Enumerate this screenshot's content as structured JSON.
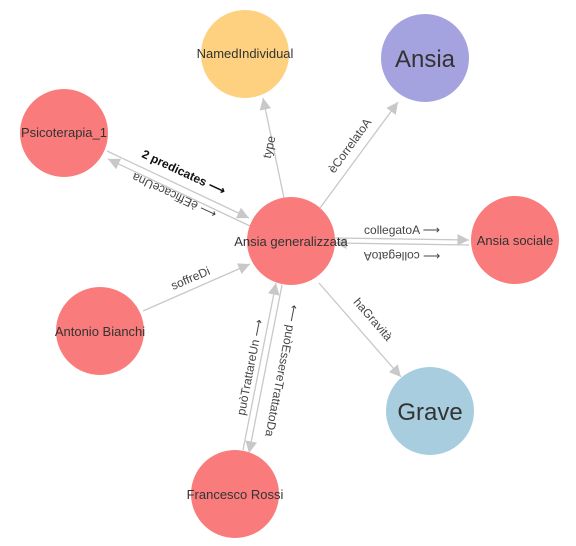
{
  "colors": {
    "concept": "#f97b7b",
    "class": "#fdd17f",
    "ansia": "#a4a3df",
    "severity": "#a7cddf",
    "edge": "#c8c8c8"
  },
  "nodes": {
    "center": {
      "label": "Ansia generalizzata",
      "color_key": "concept"
    },
    "named_individual": {
      "label": "NamedIndividual",
      "color_key": "class"
    },
    "ansia": {
      "label": "Ansia",
      "color_key": "ansia"
    },
    "psicoterapia": {
      "label": "Psicoterapia_1",
      "color_key": "concept"
    },
    "ansia_sociale": {
      "label": "Ansia sociale",
      "color_key": "concept"
    },
    "antonio": {
      "label": "Antonio Bianchi",
      "color_key": "concept"
    },
    "grave": {
      "label": "Grave",
      "color_key": "severity"
    },
    "francesco": {
      "label": "Francesco Rossi",
      "color_key": "concept"
    }
  },
  "edges": {
    "type": "type",
    "ecorrelato": "èCorrelatoA",
    "predicates": "2 predicates ⟶",
    "efficace": "⟵ èEfficaceUna",
    "collegato_fwd": "collegatoA ⟶",
    "collegato_back": "⟵ collegatoA",
    "soffre": "soffreDi",
    "gravita": "haGravità",
    "trattare": "puòTrattareUn ⟶",
    "trattato": "⟵ puòEssereTrattatoDa"
  }
}
